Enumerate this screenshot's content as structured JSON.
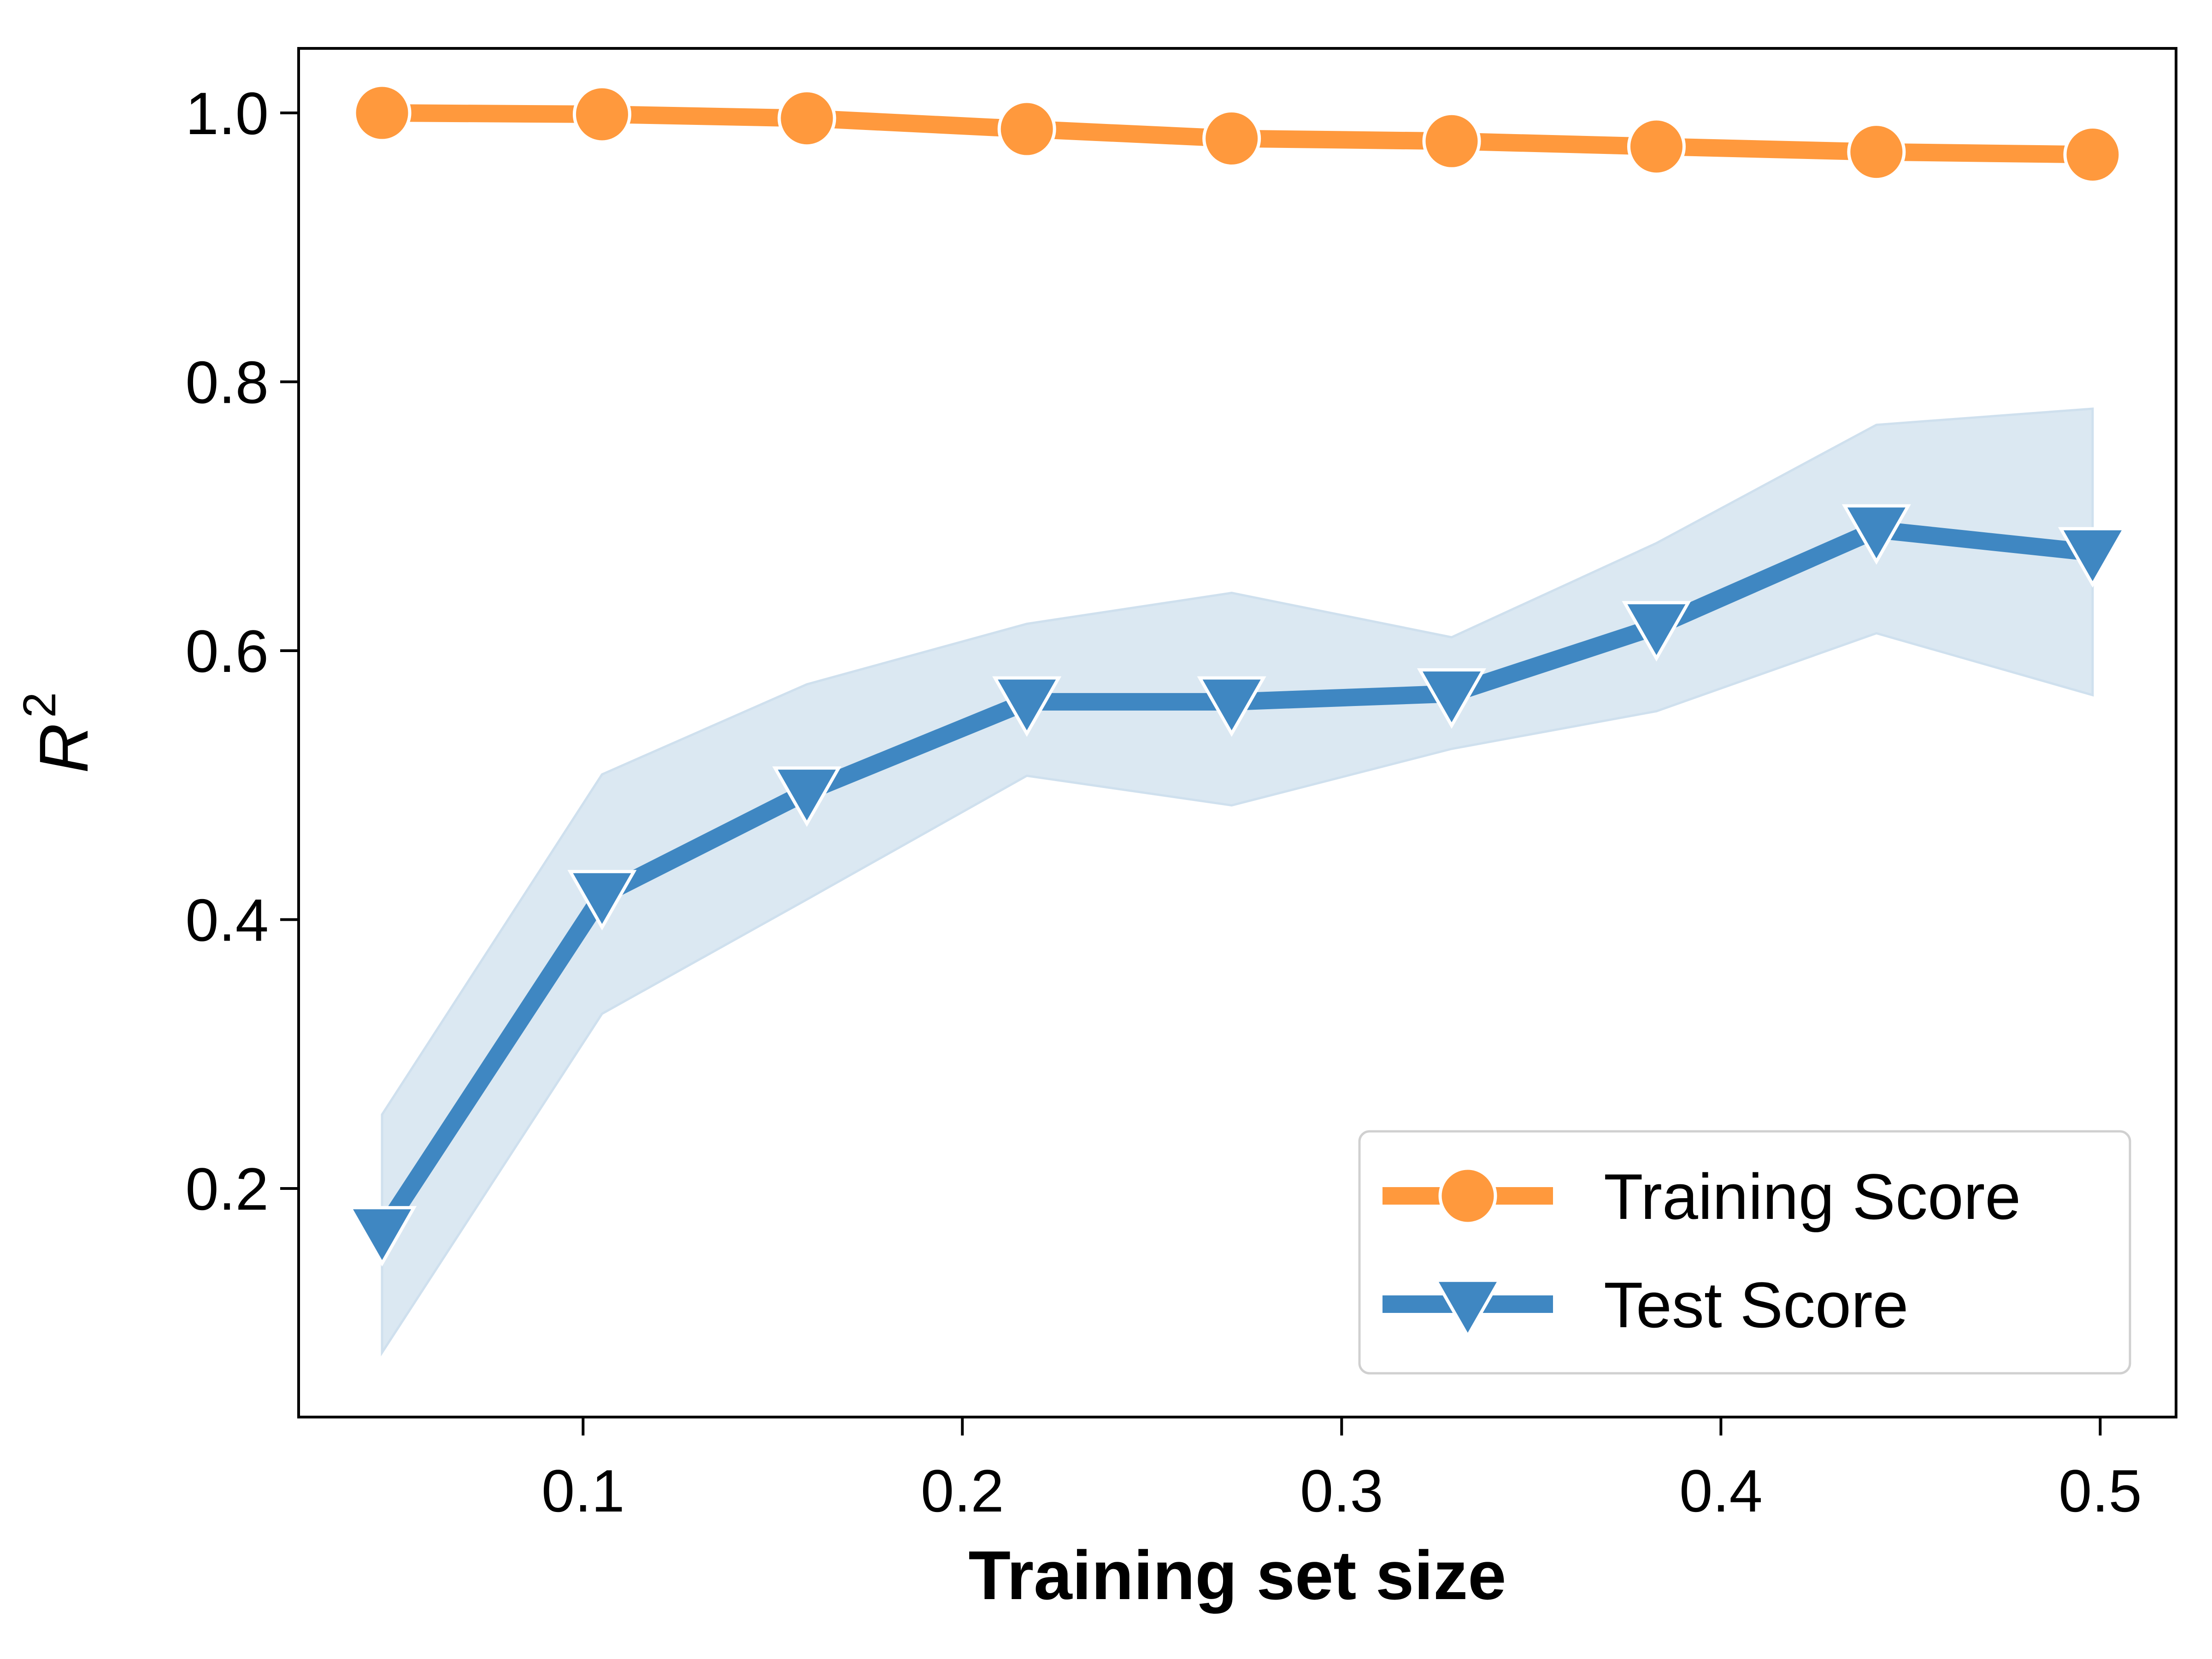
{
  "chart_data": {
    "type": "line",
    "title": "",
    "xlabel": "Training set size",
    "ylabel": {
      "base": "R",
      "superscript": "2"
    },
    "xlim": [
      0.025,
      0.52
    ],
    "ylim": [
      0.03,
      1.048
    ],
    "xticks": [
      0.1,
      0.2,
      0.3,
      0.4,
      0.5
    ],
    "xtick_labels": [
      "0.1",
      "0.2",
      "0.3",
      "0.4",
      "0.5"
    ],
    "yticks": [
      0.2,
      0.4,
      0.6,
      0.8,
      1.0
    ],
    "ytick_labels": [
      "0.2",
      "0.4",
      "0.6",
      "0.8",
      "1.0"
    ],
    "grid": false,
    "legend_position": "bottom-right",
    "x": [
      0.047,
      0.105,
      0.159,
      0.217,
      0.271,
      0.329,
      0.383,
      0.441,
      0.498
    ],
    "series": [
      {
        "name": "Training Score",
        "color": "#ff993d",
        "marker": "circle",
        "values": [
          1.0,
          0.999,
          0.996,
          0.988,
          0.981,
          0.979,
          0.975,
          0.971,
          0.969
        ]
      },
      {
        "name": "Test Score",
        "color": "#3f87c2",
        "marker": "triangle-down",
        "values": [
          0.168,
          0.418,
          0.495,
          0.562,
          0.562,
          0.568,
          0.618,
          0.69,
          0.673
        ],
        "band_upper": [
          0.255,
          0.508,
          0.575,
          0.62,
          0.643,
          0.61,
          0.68,
          0.768,
          0.78
        ],
        "band_lower": [
          0.078,
          0.33,
          0.415,
          0.507,
          0.485,
          0.527,
          0.555,
          0.613,
          0.567
        ],
        "band_color": "#cfe0ee"
      }
    ]
  }
}
